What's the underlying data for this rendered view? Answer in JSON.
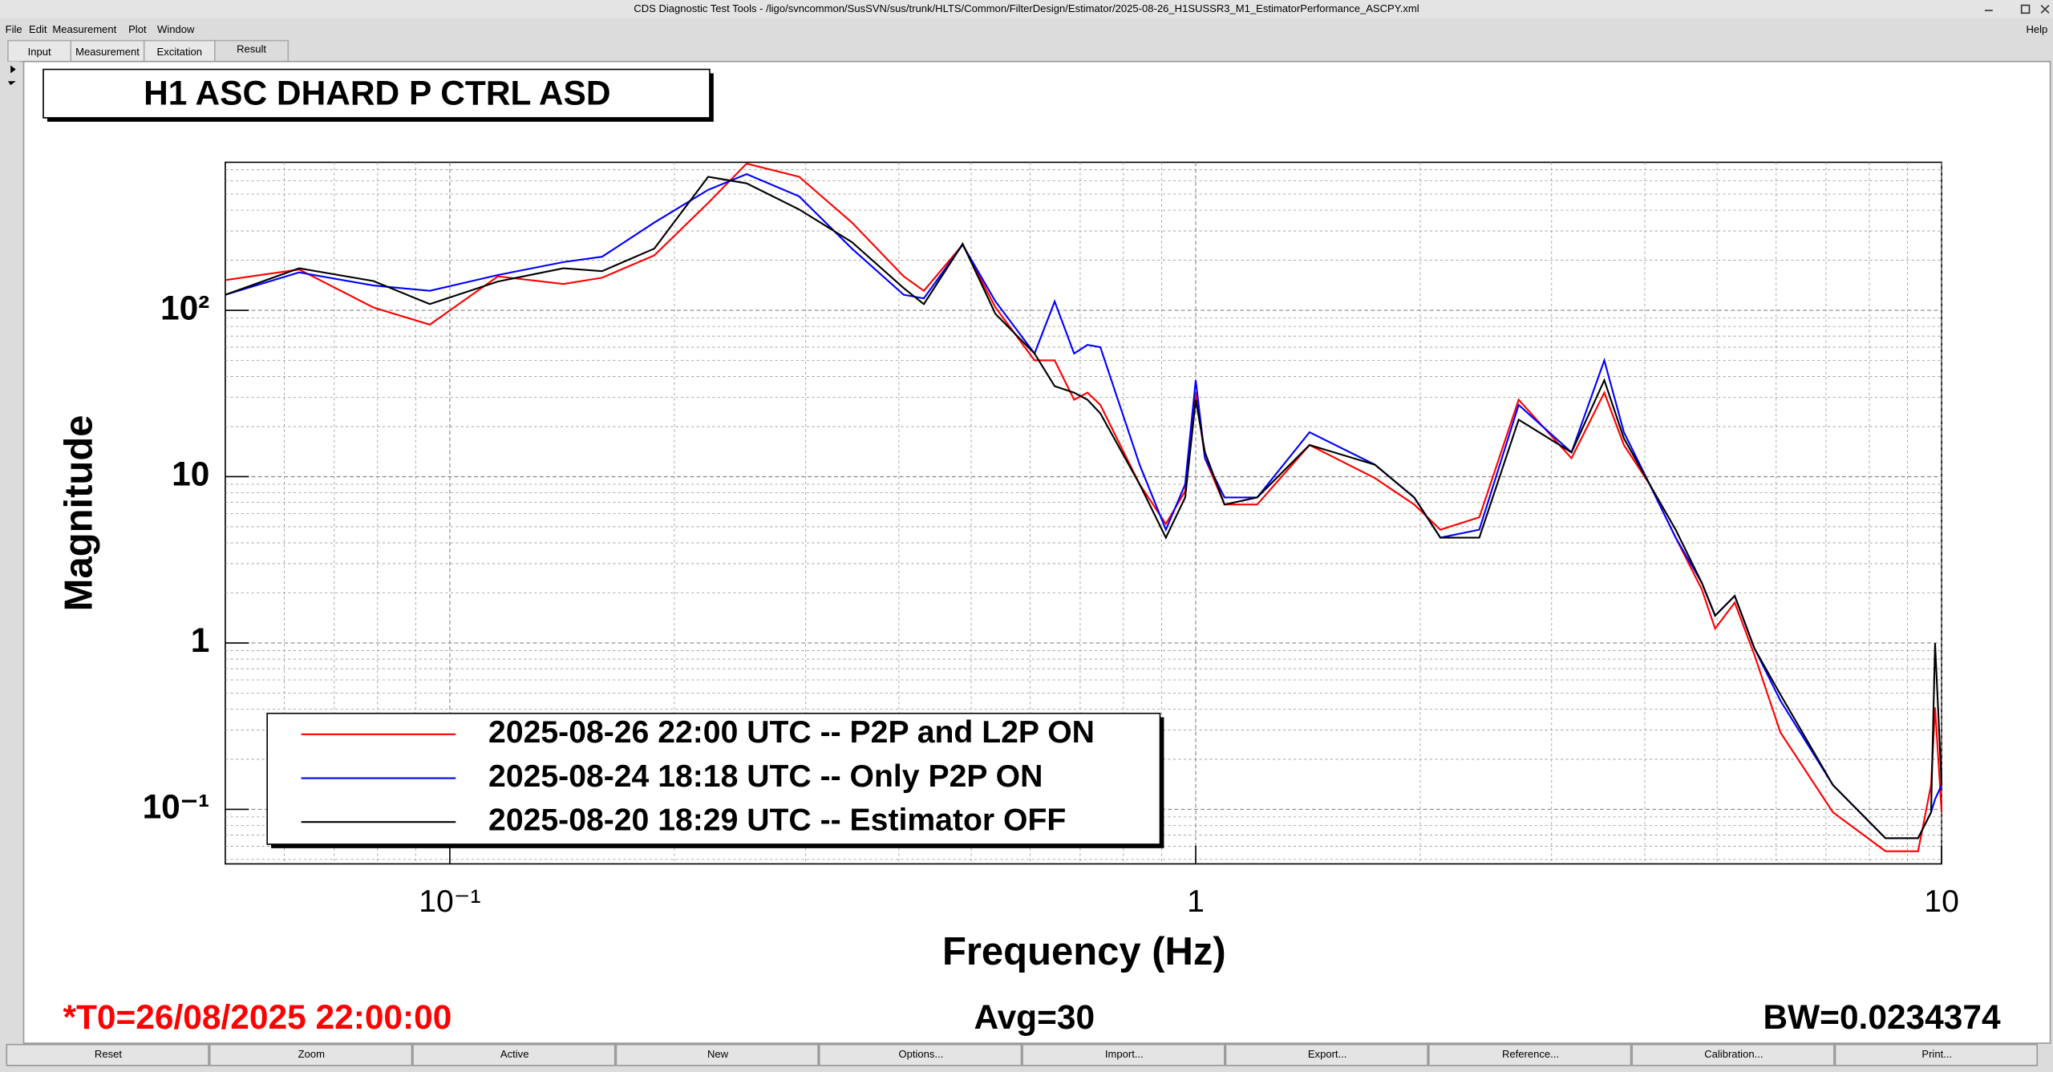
{
  "window": {
    "title": "CDS Diagnostic Test Tools - /ligo/svncommon/SusSVN/sus/trunk/HLTS/Common/FilterDesign/Estimator/2025-08-26_H1SUSSR3_M1_EstimatorPerformance_ASCPY.xml",
    "menu": [
      "File",
      "Edit",
      "Measurement",
      "Plot",
      "Window"
    ],
    "help": "Help",
    "tabs": [
      "Input",
      "Measurement",
      "Excitation",
      "Result"
    ],
    "buttons": [
      "Reset",
      "Zoom",
      "Active",
      "New",
      "Options...",
      "Import...",
      "Export...",
      "Reference...",
      "Calibration...",
      "Print..."
    ]
  },
  "status": {
    "t0": "*T0=26/08/2025 22:00:00",
    "avg": "Avg=30",
    "bw": "BW=0.0234374"
  },
  "chart_data": {
    "type": "line",
    "title": "H1 ASC DHARD P CTRL ASD",
    "xlabel": "Frequency (Hz)",
    "ylabel": "Magnitude",
    "xscale": "log",
    "yscale": "log",
    "grid": true,
    "minor_grid": true,
    "legend": "lower left",
    "xlim": [
      0.05,
      10
    ],
    "ylim": [
      0.047,
      776
    ],
    "xticks": [
      {
        "value": 0.1,
        "label": "10⁻¹"
      },
      1,
      10
    ],
    "yticks": [
      {
        "value": 0.1,
        "label": "10⁻¹"
      },
      1,
      10,
      {
        "value": 100,
        "label": "10²"
      }
    ],
    "x": [
      0.05,
      0.0628,
      0.079,
      0.094,
      0.116,
      0.142,
      0.16,
      0.188,
      0.222,
      0.25,
      0.294,
      0.346,
      0.406,
      0.432,
      0.487,
      0.539,
      0.608,
      0.647,
      0.687,
      0.716,
      0.745,
      0.841,
      0.912,
      0.968,
      1.0,
      1.029,
      1.093,
      1.209,
      1.421,
      1.739,
      1.963,
      2.128,
      2.4,
      2.71,
      3.19,
      3.53,
      3.75,
      4.06,
      4.4,
      4.77,
      4.97,
      5.28,
      5.61,
      6.08,
      7.15,
      8.41,
      9.3,
      9.68,
      9.8,
      10
    ],
    "series": [
      {
        "name": "2025-08-26 22:00 UTC -- P2P and L2P ON",
        "color": "#ff0000",
        "values": [
          152,
          176,
          104,
          82,
          160,
          144,
          157,
          214,
          442,
          762,
          635,
          337,
          160,
          131,
          248,
          104,
          50,
          50,
          29,
          32,
          27,
          9.0,
          5.2,
          8.2,
          32,
          12.9,
          6.8,
          6.8,
          15.5,
          9.8,
          6.8,
          4.8,
          5.7,
          29,
          12.9,
          32,
          15.5,
          9.0,
          4.3,
          2.1,
          1.22,
          1.75,
          0.85,
          0.29,
          0.096,
          0.056,
          0.056,
          0.14,
          0.41,
          0.096
        ]
      },
      {
        "name": "2025-08-24 18:18 UTC -- Only P2P ON",
        "color": "#0000ff",
        "values": [
          124,
          169,
          141,
          131,
          163,
          195,
          210,
          337,
          530,
          659,
          484,
          235,
          124,
          118,
          248,
          113,
          55,
          113,
          55,
          62,
          60,
          11.8,
          4.8,
          9.0,
          38,
          12.9,
          7.5,
          7.5,
          18.5,
          11.8,
          7.5,
          4.3,
          4.8,
          27,
          14,
          50,
          18.5,
          9.0,
          4.3,
          2.3,
          1.46,
          1.92,
          0.93,
          0.45,
          0.14,
          0.067,
          0.067,
          0.096,
          0.115,
          0.14
        ]
      },
      {
        "name": "2025-08-20 18:29 UTC -- Estimator OFF",
        "color": "#000000",
        "values": [
          124,
          179,
          150,
          109,
          149,
          179,
          172,
          235,
          635,
          580,
          404,
          257,
          136,
          109,
          251,
          95,
          55,
          35,
          32,
          29,
          24,
          9.0,
          4.3,
          7.5,
          29,
          14,
          6.8,
          7.5,
          15.5,
          11.8,
          7.5,
          4.3,
          4.3,
          22,
          14,
          38,
          17,
          9.0,
          4.8,
          2.3,
          1.46,
          1.92,
          0.93,
          0.49,
          0.14,
          0.067,
          0.067,
          0.096,
          1.0,
          0.14
        ]
      }
    ]
  }
}
